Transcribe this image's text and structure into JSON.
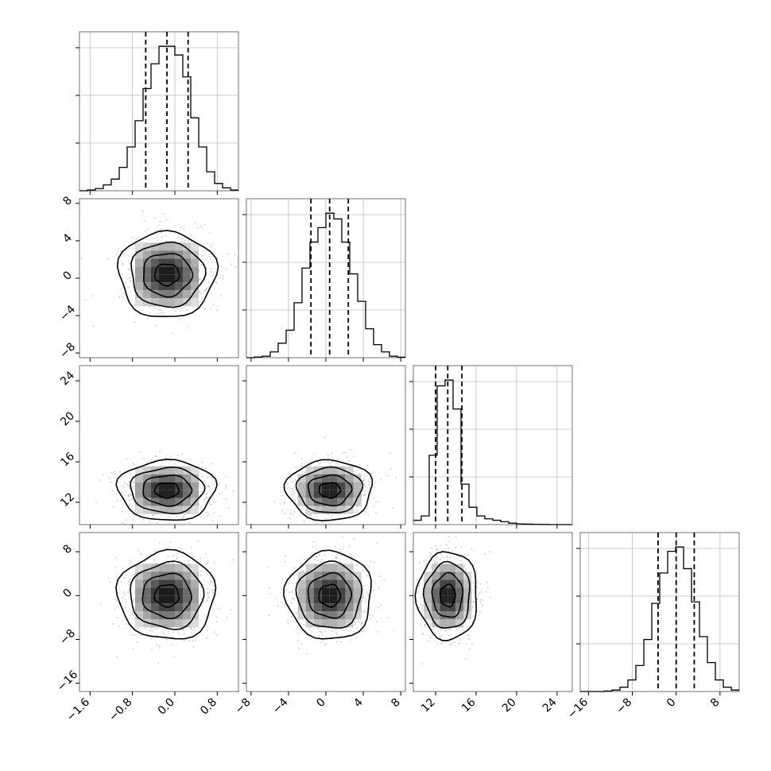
{
  "chart_data": {
    "type": "corner",
    "parameters": [
      {
        "index": 0,
        "range": [
          -1.8,
          1.2
        ],
        "ticks": [
          -1.6,
          -0.8,
          0.0,
          0.8
        ],
        "tick_labels": [
          "−1.6",
          "−0.8",
          "0.0",
          "0.8"
        ],
        "mean": -0.15,
        "sd": 0.4,
        "quantiles": [
          -0.55,
          -0.15,
          0.25
        ]
      },
      {
        "index": 1,
        "range": [
          -8.5,
          8.5
        ],
        "ticks": [
          -8,
          -4,
          0,
          4,
          8
        ],
        "tick_labels": [
          "−8",
          "−4",
          "0",
          "4",
          "8"
        ],
        "mean": 0.4,
        "sd": 2.0,
        "quantiles": [
          -1.6,
          0.4,
          2.4
        ]
      },
      {
        "index": 2,
        "range": [
          9.8,
          25.5
        ],
        "ticks": [
          12,
          16,
          20,
          24
        ],
        "tick_labels": [
          "12",
          "16",
          "20",
          "24"
        ],
        "mean": 13.2,
        "sd": 1.3,
        "quantiles": [
          12.0,
          13.2,
          14.6
        ]
      },
      {
        "index": 3,
        "range": [
          -17.5,
          11.5
        ],
        "ticks": [
          -16,
          -8,
          0,
          8
        ],
        "tick_labels": [
          "−16",
          "−8",
          "0",
          "8"
        ],
        "mean": 0.0,
        "sd": 3.5,
        "quantiles": [
          -3.3,
          0.0,
          3.3
        ]
      }
    ],
    "histograms": [
      {
        "param": 0,
        "bin_edges": [
          -1.8,
          -1.65,
          -1.5,
          -1.35,
          -1.2,
          -1.05,
          -0.9,
          -0.75,
          -0.6,
          -0.45,
          -0.3,
          -0.15,
          0.0,
          0.15,
          0.3,
          0.45,
          0.6,
          0.75,
          0.9,
          1.05,
          1.2
        ],
        "counts": [
          0.0,
          0.005,
          0.015,
          0.04,
          0.08,
          0.16,
          0.3,
          0.48,
          0.7,
          0.87,
          0.99,
          0.99,
          0.93,
          0.78,
          0.5,
          0.3,
          0.13,
          0.05,
          0.02,
          0.005
        ]
      },
      {
        "param": 1,
        "bin_edges": [
          -8.5,
          -7.65,
          -6.8,
          -5.95,
          -5.1,
          -4.25,
          -3.4,
          -2.55,
          -1.7,
          -0.85,
          0.0,
          0.85,
          1.7,
          2.55,
          3.4,
          4.25,
          5.1,
          5.95,
          6.8,
          7.65,
          8.5
        ],
        "counts": [
          0.0,
          0.005,
          0.01,
          0.04,
          0.1,
          0.19,
          0.38,
          0.62,
          0.8,
          0.9,
          1.0,
          0.96,
          0.8,
          0.58,
          0.39,
          0.2,
          0.09,
          0.04,
          0.01,
          0.003
        ]
      },
      {
        "param": 2,
        "bin_edges": [
          9.8,
          10.585,
          11.37,
          12.155,
          12.94,
          13.725,
          14.51,
          15.295,
          16.08,
          16.865,
          17.65,
          18.435,
          19.22,
          20.005,
          20.79,
          21.575,
          22.36,
          23.145,
          23.93,
          24.715,
          25.5
        ],
        "counts": [
          0.03,
          0.06,
          0.48,
          0.96,
          1.0,
          0.8,
          0.28,
          0.12,
          0.06,
          0.04,
          0.03,
          0.02,
          0.01,
          0.005,
          0.003,
          0.002,
          0.001,
          0.0,
          0.0,
          0.0
        ]
      },
      {
        "param": 3,
        "bin_edges": [
          -17.5,
          -16.05,
          -14.6,
          -13.15,
          -11.7,
          -10.25,
          -8.8,
          -7.35,
          -5.9,
          -4.45,
          -3.0,
          -1.55,
          -0.1,
          1.35,
          2.8,
          4.25,
          5.7,
          7.15,
          8.6,
          10.05,
          11.5
        ],
        "counts": [
          0.0,
          0.0,
          0.0,
          0.003,
          0.01,
          0.03,
          0.08,
          0.18,
          0.36,
          0.61,
          0.82,
          0.97,
          1.0,
          0.85,
          0.62,
          0.38,
          0.2,
          0.08,
          0.03,
          0.01
        ]
      }
    ],
    "pairs": [
      {
        "x": 0,
        "y": 1
      },
      {
        "x": 0,
        "y": 2
      },
      {
        "x": 1,
        "y": 2
      },
      {
        "x": 0,
        "y": 3
      },
      {
        "x": 1,
        "y": 3
      },
      {
        "x": 2,
        "y": 3
      }
    ],
    "contour_levels": [
      0.5,
      1.0,
      1.5,
      2.0
    ],
    "grid": true,
    "title": "",
    "xlabel": "",
    "ylabel": ""
  }
}
